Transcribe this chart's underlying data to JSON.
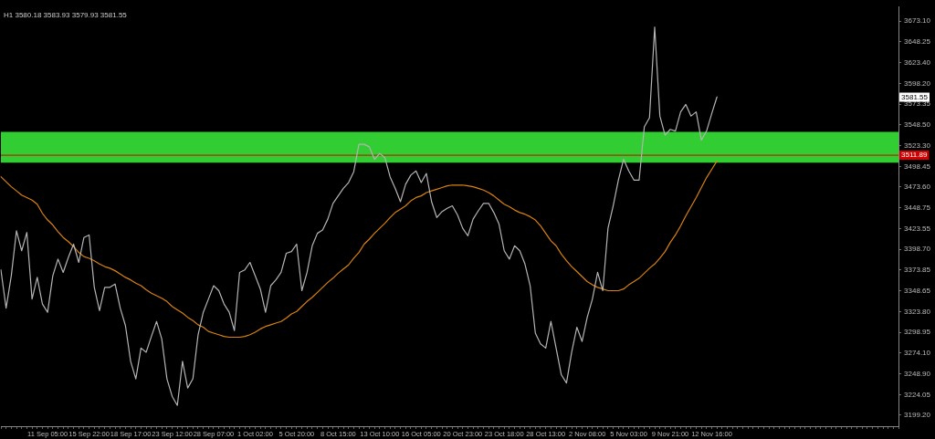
{
  "chart_data": {
    "type": "line",
    "title": "H1 3580.18 3583.93 3579.93 3581.55",
    "categories": [
      null,
      null,
      null,
      null,
      null,
      null,
      null,
      null,
      null,
      "11 Sep 05:00",
      null,
      null,
      null,
      null,
      null,
      null,
      null,
      "15 Sep 22:00",
      null,
      null,
      null,
      null,
      null,
      null,
      null,
      "18 Sep 17:00",
      null,
      null,
      null,
      null,
      null,
      null,
      null,
      "23 Sep 12:00",
      null,
      null,
      null,
      null,
      null,
      null,
      null,
      "28 Sep 07:00",
      null,
      null,
      null,
      null,
      null,
      null,
      null,
      "1 Oct 02:00",
      null,
      null,
      null,
      null,
      null,
      null,
      null,
      "5 Oct 20:00",
      null,
      null,
      null,
      null,
      null,
      null,
      null,
      "8 Oct 15:00",
      null,
      null,
      null,
      null,
      null,
      null,
      null,
      "13 Oct 10:00",
      null,
      null,
      null,
      null,
      null,
      null,
      null,
      "16 Oct 05:00",
      null,
      null,
      null,
      null,
      null,
      null,
      null,
      "20 Oct 23:00",
      null,
      null,
      null,
      null,
      null,
      null,
      null,
      "23 Oct 18:00",
      null,
      null,
      null,
      null,
      null,
      null,
      null,
      "28 Oct 13:00",
      null,
      null,
      null,
      null,
      null,
      null,
      null,
      "2 Nov 08:00",
      null,
      null,
      null,
      null,
      null,
      null,
      null,
      "5 Nov 03:00",
      null,
      null,
      null,
      null,
      null,
      null,
      null,
      "9 Nov 21:00",
      null,
      null,
      null,
      null,
      null,
      null,
      null,
      "12 Nov 16:00",
      null,
      null,
      null,
      null,
      null,
      null,
      null,
      null,
      null,
      null,
      null,
      null,
      null,
      null,
      null,
      null,
      null,
      null,
      null,
      null,
      null,
      null,
      null,
      null,
      null,
      null,
      null,
      null,
      null,
      null,
      null,
      null,
      null,
      null,
      null,
      null
    ],
    "series": [
      {
        "color": "#b4b4b4",
        "values": [
          3374,
          3328,
          3367,
          3421,
          3397,
          3419,
          3339,
          3365,
          3333,
          3323,
          3367,
          3387,
          3371,
          3389,
          3405,
          3383,
          3413,
          3416,
          3353,
          3325,
          3353,
          3353,
          3357,
          3328,
          3307,
          3264,
          3243,
          3280,
          3275,
          3294,
          3312,
          3291,
          3243,
          3222,
          3211,
          3264,
          3232,
          3243,
          3296,
          3323,
          3339,
          3355,
          3349,
          3333,
          3323,
          3301,
          3371,
          3374,
          3383,
          3367,
          3351,
          3323,
          3355,
          3362,
          3371,
          3394,
          3396,
          3405,
          3349,
          3371,
          3403,
          3418,
          3422,
          3435,
          3454,
          3463,
          3472,
          3479,
          3492,
          3525,
          3525,
          3522,
          3507,
          3514,
          3509,
          3486,
          3472,
          3456,
          3477,
          3488,
          3493,
          3479,
          3490,
          3456,
          3437,
          3444,
          3448,
          3451,
          3440,
          3424,
          3415,
          3435,
          3445,
          3454,
          3454,
          3443,
          3429,
          3397,
          3387,
          3403,
          3397,
          3381,
          3355,
          3298,
          3285,
          3280,
          3312,
          3280,
          3248,
          3238,
          3275,
          3305,
          3288,
          3317,
          3339,
          3371,
          3349,
          3424,
          3451,
          3482,
          3507,
          3493,
          3482,
          3482,
          3546,
          3557,
          3666,
          3559,
          3536,
          3543,
          3541,
          3564,
          3573,
          3559,
          3564,
          3530,
          3541,
          3562,
          3582,
          null,
          null,
          null,
          null,
          null,
          null,
          null,
          null,
          null,
          null,
          null,
          null,
          null,
          null,
          null,
          null,
          null,
          null,
          null,
          null,
          null,
          null,
          null,
          null,
          null,
          null,
          null,
          null,
          null,
          null,
          null,
          null,
          null,
          null,
          null
        ]
      },
      {
        "color": "#d9820f",
        "values": [
          3486,
          3480,
          3474,
          3469,
          3464,
          3461,
          3458,
          3453,
          3442,
          3434,
          3428,
          3420,
          3413,
          3408,
          3402,
          3395,
          3390,
          3388,
          3385,
          3381,
          3378,
          3376,
          3373,
          3369,
          3365,
          3362,
          3358,
          3355,
          3350,
          3346,
          3343,
          3340,
          3336,
          3330,
          3326,
          3322,
          3317,
          3313,
          3308,
          3305,
          3300,
          3298,
          3296,
          3294,
          3293,
          3293,
          3293,
          3294,
          3296,
          3299,
          3303,
          3306,
          3308,
          3310,
          3312,
          3316,
          3321,
          3324,
          3330,
          3336,
          3341,
          3347,
          3353,
          3359,
          3364,
          3370,
          3375,
          3380,
          3388,
          3395,
          3405,
          3411,
          3418,
          3424,
          3430,
          3437,
          3443,
          3447,
          3451,
          3457,
          3461,
          3463,
          3467,
          3469,
          3471,
          3473,
          3475,
          3476,
          3476,
          3476,
          3475,
          3474,
          3472,
          3470,
          3467,
          3463,
          3458,
          3453,
          3450,
          3446,
          3443,
          3441,
          3438,
          3434,
          3427,
          3418,
          3409,
          3403,
          3393,
          3385,
          3378,
          3372,
          3366,
          3360,
          3356,
          3353,
          3351,
          3349,
          3349,
          3349,
          3351,
          3356,
          3360,
          3364,
          3370,
          3376,
          3381,
          3388,
          3396,
          3407,
          3416,
          3427,
          3439,
          3450,
          3461,
          3473,
          3485,
          3495,
          3505,
          null,
          null,
          null,
          null,
          null,
          null,
          null,
          null,
          null,
          null,
          null,
          null,
          null,
          null,
          null,
          null,
          null,
          null,
          null,
          null,
          null,
          null,
          null,
          null,
          null,
          null,
          null,
          null,
          null,
          null,
          null,
          null,
          null,
          null,
          null
        ]
      }
    ],
    "ylim": [
      3186,
      3690
    ],
    "yticks": [
      {
        "value": 3673.1,
        "label": "3673.10"
      },
      3648.25,
      {
        "value": 3623.4,
        "label": "3623.40"
      },
      {
        "value": 3598.2,
        "label": "3598.20"
      },
      3573.35,
      {
        "value": 3548.5,
        "label": "3548.50"
      },
      {
        "value": 3523.3,
        "label": "3523.30"
      },
      3498.45,
      {
        "value": 3473.6,
        "label": "3473.60"
      },
      3448.75,
      3423.55,
      {
        "value": 3398.7,
        "label": "3398.70"
      },
      3373.85,
      3348.65,
      {
        "value": 3323.8,
        "label": "3323.80"
      },
      3298.95,
      {
        "value": 3274.1,
        "label": "3274.10"
      },
      {
        "value": 3248.9,
        "label": "3248.90"
      },
      3224.05,
      {
        "value": 3199.2,
        "label": "3199.20"
      }
    ],
    "bands": [
      {
        "axis": "y",
        "from": 3503,
        "to": 3540,
        "color": "#32cd32"
      }
    ],
    "ref_lines": [
      {
        "axis": "y",
        "value": 3511.89,
        "label": "3511.89",
        "color": "#d40000"
      }
    ],
    "annotations": [
      {
        "text": "3581.55",
        "y": 3581.55
      }
    ],
    "marker": "none",
    "line_style": "solid",
    "legend": false,
    "grid": false
  }
}
